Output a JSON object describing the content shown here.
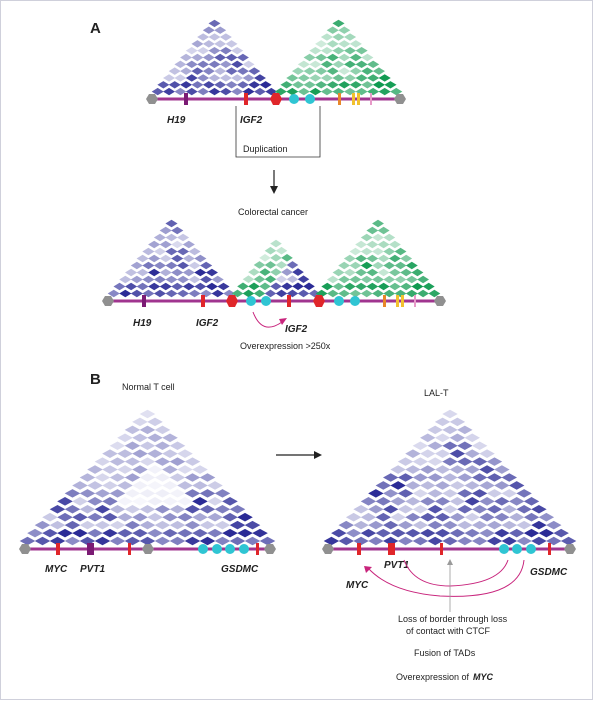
{
  "panel_a": {
    "label": "A",
    "top_genes": {
      "h19": "H19",
      "igf2": "IGF2"
    },
    "duplication_label": "Duplication",
    "condition_label": "Colorectal cancer",
    "bottom_genes": {
      "h19": "H19",
      "igf2": "IGF2",
      "igf2_dup": "IGF2"
    },
    "overexpression_label": "Overexpression >250x"
  },
  "panel_b": {
    "label": "B",
    "normal_title": "Normal T cell",
    "tumor_title": "LAL-T",
    "normal_genes": {
      "myc": "MYC",
      "pvt1": "PVT1",
      "gsdmc": "GSDMC"
    },
    "tumor_genes": {
      "myc": "MYC",
      "pvt1": "PVT1",
      "gsdmc": "GSDMC"
    },
    "notes": {
      "line1": "Loss of border through loss",
      "line2": "of contact with CTCF",
      "fusion": "Fusion of TADs",
      "overexp_prefix": "Overexpression of",
      "overexp_gene": "MYC"
    }
  },
  "colors": {
    "chromosome": "#a0358f",
    "gene_red": "#e0262a",
    "gene_purple": "#7b1b74",
    "ctcf_red": "#e0262a",
    "cyan": "#2fc5d3",
    "orange": "#e8872a",
    "yellow": "#f2c12e",
    "pink": "#e79ac8",
    "gray_end": "#909090",
    "blue_dark": "#2b2b96",
    "green_dark": "#0f9a50",
    "arrow_magenta": "#c8247c"
  }
}
